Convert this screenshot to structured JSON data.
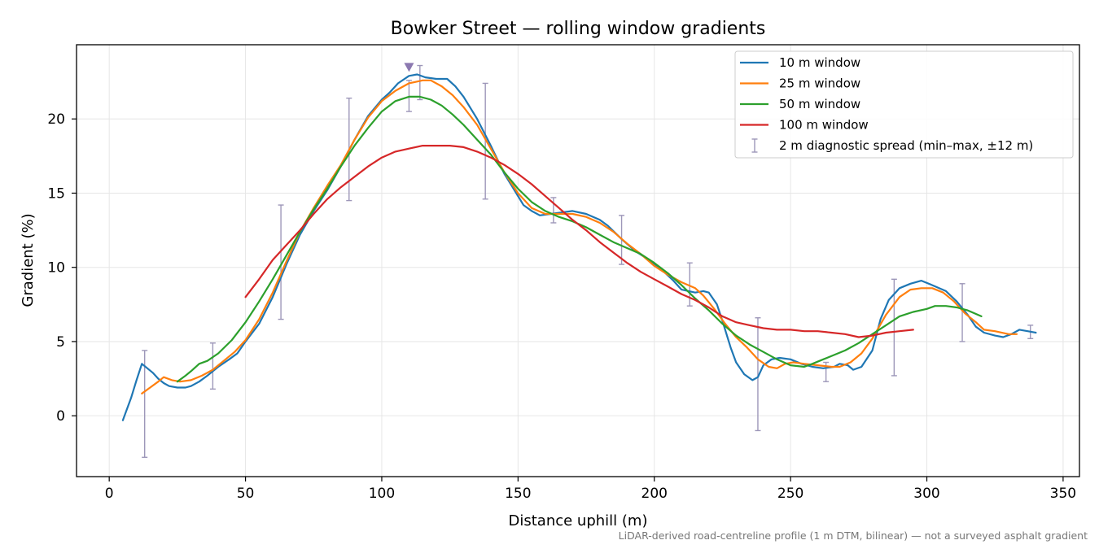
{
  "chart_data": {
    "type": "line",
    "title": "Bowker Street — rolling window gradients",
    "xlabel": "Distance uphill (m)",
    "ylabel": "Gradient (%)",
    "xlim": [
      -12,
      356
    ],
    "ylim": [
      -4.1,
      25
    ],
    "xticks": [
      0,
      50,
      100,
      150,
      200,
      250,
      300,
      350
    ],
    "yticks": [
      0,
      5,
      10,
      15,
      20
    ],
    "grid": true,
    "legend_position": "top-right",
    "peak_marker": {
      "x": 110,
      "y": 23.5,
      "color": "#8c79b0"
    },
    "footnote": "LiDAR-derived road-centreline profile (1 m DTM, bilinear) — not a surveyed asphalt gradient",
    "series": [
      {
        "name": "10 m window",
        "color": "#1f77b4",
        "points": [
          [
            5,
            -0.3
          ],
          [
            8,
            1.2
          ],
          [
            10,
            2.4
          ],
          [
            12,
            3.5
          ],
          [
            14,
            3.2
          ],
          [
            16,
            2.9
          ],
          [
            18,
            2.5
          ],
          [
            20,
            2.2
          ],
          [
            22,
            2.0
          ],
          [
            25,
            1.9
          ],
          [
            28,
            1.9
          ],
          [
            30,
            2.0
          ],
          [
            33,
            2.3
          ],
          [
            36,
            2.7
          ],
          [
            40,
            3.3
          ],
          [
            44,
            3.8
          ],
          [
            47,
            4.2
          ],
          [
            50,
            5.0
          ],
          [
            55,
            6.2
          ],
          [
            60,
            8.0
          ],
          [
            65,
            10.2
          ],
          [
            70,
            12.2
          ],
          [
            75,
            13.8
          ],
          [
            80,
            15.2
          ],
          [
            85,
            16.8
          ],
          [
            90,
            18.6
          ],
          [
            95,
            20.2
          ],
          [
            100,
            21.3
          ],
          [
            103,
            21.8
          ],
          [
            106,
            22.4
          ],
          [
            110,
            22.9
          ],
          [
            113,
            23.0
          ],
          [
            116,
            22.8
          ],
          [
            120,
            22.7
          ],
          [
            124,
            22.7
          ],
          [
            127,
            22.2
          ],
          [
            130,
            21.5
          ],
          [
            135,
            20.0
          ],
          [
            140,
            18.2
          ],
          [
            145,
            16.3
          ],
          [
            148,
            15.4
          ],
          [
            152,
            14.2
          ],
          [
            155,
            13.8
          ],
          [
            158,
            13.5
          ],
          [
            162,
            13.6
          ],
          [
            166,
            13.7
          ],
          [
            170,
            13.8
          ],
          [
            175,
            13.6
          ],
          [
            180,
            13.2
          ],
          [
            183,
            12.8
          ],
          [
            188,
            11.9
          ],
          [
            193,
            11.1
          ],
          [
            198,
            10.5
          ],
          [
            203,
            9.8
          ],
          [
            207,
            9.1
          ],
          [
            210,
            8.5
          ],
          [
            215,
            8.3
          ],
          [
            218,
            8.4
          ],
          [
            220,
            8.3
          ],
          [
            223,
            7.5
          ],
          [
            225,
            6.4
          ],
          [
            228,
            4.6
          ],
          [
            230,
            3.6
          ],
          [
            233,
            2.8
          ],
          [
            236,
            2.4
          ],
          [
            238,
            2.6
          ],
          [
            240,
            3.4
          ],
          [
            243,
            3.8
          ],
          [
            246,
            3.9
          ],
          [
            250,
            3.8
          ],
          [
            254,
            3.5
          ],
          [
            258,
            3.3
          ],
          [
            262,
            3.2
          ],
          [
            266,
            3.3
          ],
          [
            268,
            3.5
          ],
          [
            271,
            3.4
          ],
          [
            273,
            3.1
          ],
          [
            276,
            3.3
          ],
          [
            280,
            4.4
          ],
          [
            283,
            6.5
          ],
          [
            286,
            7.8
          ],
          [
            290,
            8.6
          ],
          [
            294,
            8.9
          ],
          [
            298,
            9.1
          ],
          [
            302,
            8.8
          ],
          [
            307,
            8.4
          ],
          [
            311,
            7.7
          ],
          [
            315,
            6.8
          ],
          [
            318,
            6.0
          ],
          [
            321,
            5.6
          ],
          [
            325,
            5.4
          ],
          [
            328,
            5.3
          ],
          [
            331,
            5.5
          ],
          [
            334,
            5.8
          ],
          [
            337,
            5.7
          ],
          [
            340,
            5.6
          ]
        ]
      },
      {
        "name": "25 m window",
        "color": "#ff7f0e",
        "points": [
          [
            12,
            1.5
          ],
          [
            15,
            1.9
          ],
          [
            18,
            2.3
          ],
          [
            20,
            2.6
          ],
          [
            23,
            2.4
          ],
          [
            26,
            2.3
          ],
          [
            30,
            2.4
          ],
          [
            34,
            2.7
          ],
          [
            38,
            3.1
          ],
          [
            42,
            3.7
          ],
          [
            46,
            4.3
          ],
          [
            50,
            5.1
          ],
          [
            55,
            6.5
          ],
          [
            60,
            8.3
          ],
          [
            65,
            10.4
          ],
          [
            70,
            12.4
          ],
          [
            75,
            14.0
          ],
          [
            80,
            15.5
          ],
          [
            85,
            16.9
          ],
          [
            90,
            18.6
          ],
          [
            95,
            20.1
          ],
          [
            100,
            21.2
          ],
          [
            105,
            21.9
          ],
          [
            110,
            22.4
          ],
          [
            115,
            22.6
          ],
          [
            118,
            22.6
          ],
          [
            122,
            22.2
          ],
          [
            126,
            21.6
          ],
          [
            130,
            20.8
          ],
          [
            135,
            19.6
          ],
          [
            140,
            18.0
          ],
          [
            145,
            16.4
          ],
          [
            150,
            15.0
          ],
          [
            155,
            14.0
          ],
          [
            160,
            13.6
          ],
          [
            165,
            13.6
          ],
          [
            170,
            13.6
          ],
          [
            175,
            13.4
          ],
          [
            180,
            13.0
          ],
          [
            185,
            12.4
          ],
          [
            190,
            11.6
          ],
          [
            195,
            10.9
          ],
          [
            200,
            10.1
          ],
          [
            205,
            9.5
          ],
          [
            210,
            9.0
          ],
          [
            215,
            8.6
          ],
          [
            218,
            8.1
          ],
          [
            222,
            7.2
          ],
          [
            226,
            6.2
          ],
          [
            230,
            5.3
          ],
          [
            234,
            4.6
          ],
          [
            238,
            3.8
          ],
          [
            242,
            3.3
          ],
          [
            245,
            3.2
          ],
          [
            248,
            3.5
          ],
          [
            251,
            3.6
          ],
          [
            255,
            3.5
          ],
          [
            260,
            3.4
          ],
          [
            265,
            3.3
          ],
          [
            268,
            3.3
          ],
          [
            272,
            3.6
          ],
          [
            276,
            4.2
          ],
          [
            280,
            5.2
          ],
          [
            285,
            6.8
          ],
          [
            290,
            8.0
          ],
          [
            294,
            8.5
          ],
          [
            298,
            8.6
          ],
          [
            302,
            8.6
          ],
          [
            306,
            8.3
          ],
          [
            310,
            7.7
          ],
          [
            314,
            6.9
          ],
          [
            318,
            6.3
          ],
          [
            321,
            5.8
          ],
          [
            325,
            5.7
          ],
          [
            330,
            5.5
          ],
          [
            333,
            5.5
          ]
        ]
      },
      {
        "name": "50 m window",
        "color": "#2ca02c",
        "points": [
          [
            25,
            2.3
          ],
          [
            28,
            2.7
          ],
          [
            30,
            3.0
          ],
          [
            33,
            3.5
          ],
          [
            36,
            3.7
          ],
          [
            40,
            4.2
          ],
          [
            45,
            5.1
          ],
          [
            50,
            6.3
          ],
          [
            55,
            7.7
          ],
          [
            60,
            9.2
          ],
          [
            65,
            10.8
          ],
          [
            70,
            12.4
          ],
          [
            75,
            13.9
          ],
          [
            80,
            15.3
          ],
          [
            85,
            16.8
          ],
          [
            90,
            18.2
          ],
          [
            95,
            19.4
          ],
          [
            100,
            20.5
          ],
          [
            105,
            21.2
          ],
          [
            110,
            21.5
          ],
          [
            114,
            21.5
          ],
          [
            118,
            21.3
          ],
          [
            122,
            20.9
          ],
          [
            126,
            20.3
          ],
          [
            130,
            19.6
          ],
          [
            135,
            18.6
          ],
          [
            140,
            17.6
          ],
          [
            145,
            16.4
          ],
          [
            150,
            15.3
          ],
          [
            155,
            14.4
          ],
          [
            160,
            13.8
          ],
          [
            165,
            13.4
          ],
          [
            170,
            13.1
          ],
          [
            175,
            12.7
          ],
          [
            180,
            12.2
          ],
          [
            185,
            11.7
          ],
          [
            190,
            11.3
          ],
          [
            195,
            10.9
          ],
          [
            200,
            10.3
          ],
          [
            205,
            9.6
          ],
          [
            210,
            8.8
          ],
          [
            215,
            7.9
          ],
          [
            220,
            7.1
          ],
          [
            225,
            6.2
          ],
          [
            230,
            5.4
          ],
          [
            235,
            4.8
          ],
          [
            240,
            4.3
          ],
          [
            245,
            3.8
          ],
          [
            250,
            3.4
          ],
          [
            255,
            3.3
          ],
          [
            258,
            3.5
          ],
          [
            262,
            3.8
          ],
          [
            266,
            4.1
          ],
          [
            270,
            4.4
          ],
          [
            275,
            4.9
          ],
          [
            280,
            5.5
          ],
          [
            285,
            6.1
          ],
          [
            290,
            6.7
          ],
          [
            295,
            7.0
          ],
          [
            300,
            7.2
          ],
          [
            303,
            7.4
          ],
          [
            307,
            7.4
          ],
          [
            311,
            7.3
          ],
          [
            315,
            7.1
          ],
          [
            320,
            6.7
          ]
        ]
      },
      {
        "name": "100 m window",
        "color": "#d62728",
        "points": [
          [
            50,
            8.0
          ],
          [
            55,
            9.2
          ],
          [
            60,
            10.5
          ],
          [
            65,
            11.5
          ],
          [
            70,
            12.5
          ],
          [
            75,
            13.6
          ],
          [
            80,
            14.6
          ],
          [
            85,
            15.4
          ],
          [
            90,
            16.1
          ],
          [
            95,
            16.8
          ],
          [
            100,
            17.4
          ],
          [
            105,
            17.8
          ],
          [
            110,
            18.0
          ],
          [
            115,
            18.2
          ],
          [
            120,
            18.2
          ],
          [
            125,
            18.2
          ],
          [
            130,
            18.1
          ],
          [
            135,
            17.8
          ],
          [
            140,
            17.4
          ],
          [
            145,
            16.9
          ],
          [
            150,
            16.3
          ],
          [
            155,
            15.6
          ],
          [
            160,
            14.8
          ],
          [
            165,
            14.0
          ],
          [
            170,
            13.2
          ],
          [
            175,
            12.5
          ],
          [
            180,
            11.7
          ],
          [
            185,
            11.0
          ],
          [
            190,
            10.3
          ],
          [
            195,
            9.7
          ],
          [
            200,
            9.2
          ],
          [
            205,
            8.7
          ],
          [
            210,
            8.2
          ],
          [
            215,
            7.8
          ],
          [
            220,
            7.3
          ],
          [
            225,
            6.7
          ],
          [
            230,
            6.3
          ],
          [
            235,
            6.1
          ],
          [
            240,
            5.9
          ],
          [
            245,
            5.8
          ],
          [
            250,
            5.8
          ],
          [
            255,
            5.7
          ],
          [
            260,
            5.7
          ],
          [
            265,
            5.6
          ],
          [
            270,
            5.5
          ],
          [
            275,
            5.3
          ],
          [
            280,
            5.4
          ],
          [
            285,
            5.6
          ],
          [
            290,
            5.7
          ],
          [
            295,
            5.8
          ]
        ]
      }
    ],
    "errorbars": {
      "name": "2 m diagnostic spread (min–max, ±12 m)",
      "color": "#9d97b9",
      "bars": [
        {
          "x": 13,
          "low": -2.8,
          "high": 4.4
        },
        {
          "x": 38,
          "low": 1.8,
          "high": 4.9
        },
        {
          "x": 63,
          "low": 6.5,
          "high": 14.2
        },
        {
          "x": 88,
          "low": 14.5,
          "high": 21.4
        },
        {
          "x": 110,
          "low": 20.5,
          "high": 22.6
        },
        {
          "x": 114,
          "low": 21.3,
          "high": 23.6
        },
        {
          "x": 138,
          "low": 14.6,
          "high": 22.4
        },
        {
          "x": 163,
          "low": 13.0,
          "high": 14.7
        },
        {
          "x": 188,
          "low": 10.2,
          "high": 13.5
        },
        {
          "x": 213,
          "low": 7.4,
          "high": 10.3
        },
        {
          "x": 238,
          "low": -1.0,
          "high": 6.6
        },
        {
          "x": 263,
          "low": 2.3,
          "high": 3.6
        },
        {
          "x": 288,
          "low": 2.7,
          "high": 9.2
        },
        {
          "x": 313,
          "low": 5.0,
          "high": 8.9
        },
        {
          "x": 338,
          "low": 5.2,
          "high": 6.1
        }
      ]
    }
  }
}
